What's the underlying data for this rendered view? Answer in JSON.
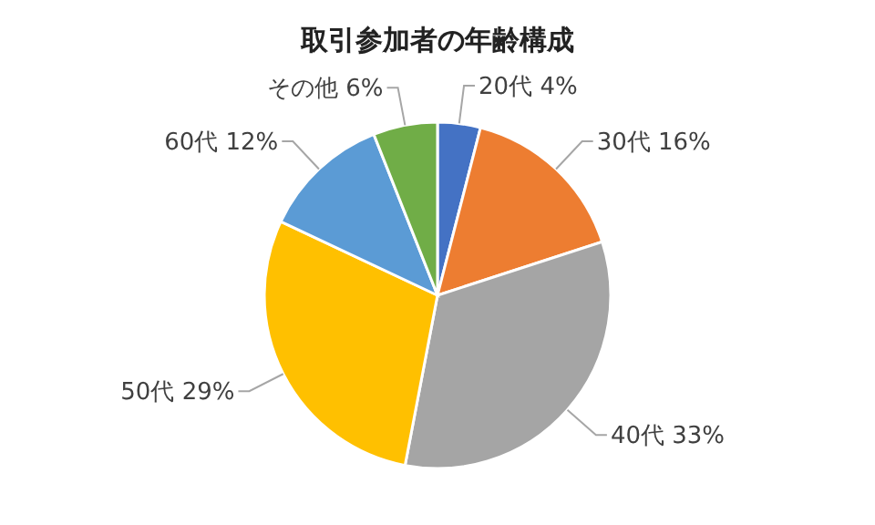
{
  "chart_data": {
    "type": "pie",
    "title": "取引参加者の年齢構成",
    "categories": [
      "20代",
      "30代",
      "40代",
      "50代",
      "60代",
      "その他"
    ],
    "values": [
      4,
      16,
      33,
      29,
      12,
      6
    ],
    "value_labels": [
      "4%",
      "16%",
      "33%",
      "29%",
      "12%",
      "6%"
    ],
    "colors": [
      "#4472c4",
      "#ed7d31",
      "#a5a5a5",
      "#ffc000",
      "#5b9bd5",
      "#70ad47"
    ]
  }
}
